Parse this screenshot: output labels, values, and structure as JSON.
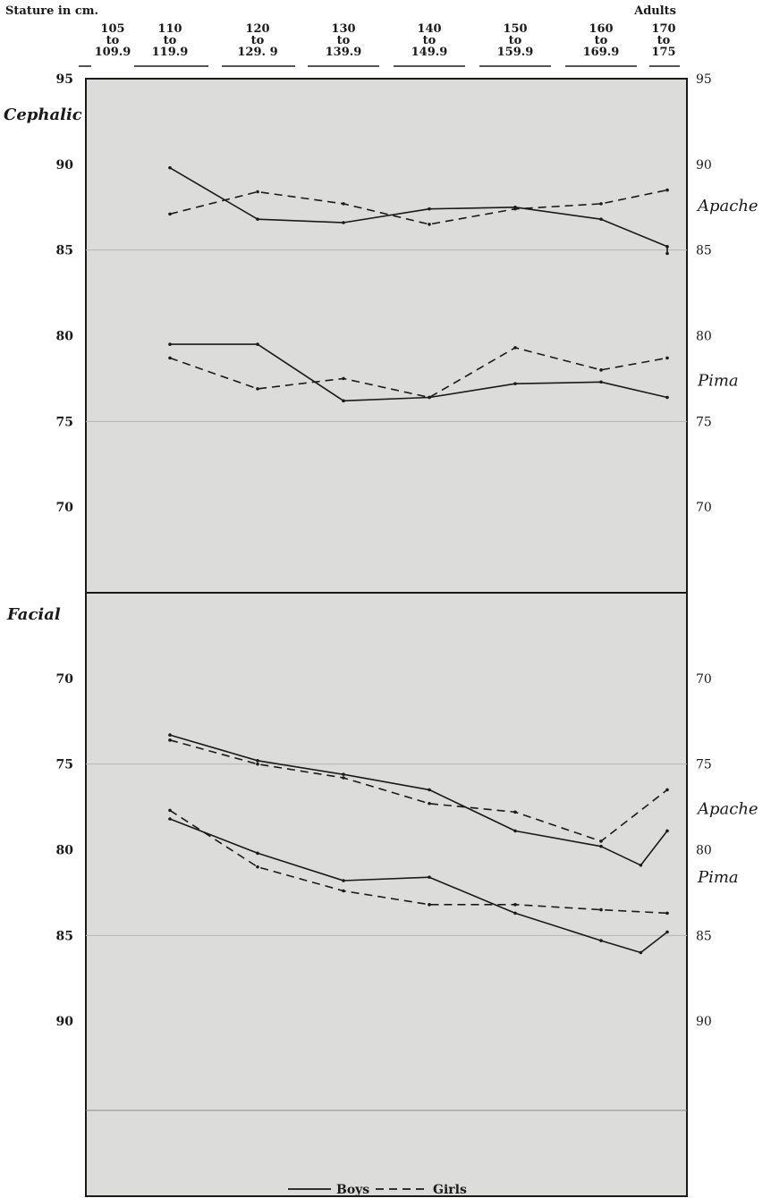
{
  "header": {
    "left_label": "Stature in cm.",
    "right_label": "Adults"
  },
  "footer": {
    "boys_label": "Boys",
    "girls_label": "Girls"
  },
  "chart_data": [
    {
      "type": "line",
      "section_label": "Cephalic",
      "categories": [
        [
          "105",
          "to",
          "109.9"
        ],
        [
          "110",
          "to",
          "119.9"
        ],
        [
          "120",
          "to",
          "129. 9"
        ],
        [
          "130",
          "to",
          "139.9"
        ],
        [
          "140",
          "to",
          "149.9"
        ],
        [
          "150",
          "to",
          "159.9"
        ],
        [
          "160",
          "to",
          "169.9"
        ],
        [
          "170",
          "to",
          "175"
        ]
      ],
      "y_ticks": [
        70,
        75,
        80,
        85,
        90,
        95
      ],
      "ylim": [
        65,
        95
      ],
      "y_inverted": false,
      "style_legend": {
        "solid": "Boys",
        "dashed": "Girls"
      },
      "series": [
        {
          "group": "Apache",
          "style": "solid",
          "x": [
            1,
            2,
            3,
            4,
            5,
            6,
            7,
            7.8
          ],
          "values": [
            89.8,
            86.8,
            86.6,
            87.4,
            87.5,
            86.8,
            85.2,
            84.8
          ]
        },
        {
          "group": "Apache",
          "style": "dashed",
          "x": [
            1,
            2,
            3,
            4,
            5,
            6,
            7
          ],
          "values": [
            87.1,
            88.4,
            87.7,
            86.5,
            87.4,
            87.7,
            88.5
          ]
        },
        {
          "group": "Pima",
          "style": "solid",
          "x": [
            1,
            2,
            3,
            4,
            5,
            6,
            7
          ],
          "values": [
            79.5,
            79.5,
            76.2,
            76.4,
            77.2,
            77.3,
            76.4
          ]
        },
        {
          "group": "Pima",
          "style": "dashed",
          "x": [
            1,
            2,
            3,
            4,
            5,
            6,
            7
          ],
          "values": [
            78.7,
            76.9,
            77.5,
            76.4,
            79.3,
            78.0,
            78.7
          ]
        }
      ],
      "group_labels": [
        {
          "text": "Apache",
          "value": 87.6
        },
        {
          "text": "Pima",
          "value": 77.4
        }
      ]
    },
    {
      "type": "line",
      "section_label": "Facial",
      "y_ticks": [
        70,
        75,
        80,
        85,
        90
      ],
      "ylim": [
        65,
        95
      ],
      "y_inverted": true,
      "style_legend": {
        "solid": "Boys",
        "dashed": "Girls"
      },
      "series": [
        {
          "group": "Apache",
          "style": "solid",
          "x": [
            1,
            2,
            3,
            4,
            5,
            6,
            6.6,
            7
          ],
          "values": [
            73.3,
            74.8,
            75.6,
            76.5,
            78.9,
            79.8,
            80.9,
            78.9
          ]
        },
        {
          "group": "Apache",
          "style": "dashed",
          "x": [
            1,
            2,
            3,
            4,
            5,
            6,
            7
          ],
          "values": [
            73.6,
            75.0,
            75.8,
            77.3,
            77.8,
            79.5,
            76.5
          ]
        },
        {
          "group": "Pima",
          "style": "solid",
          "x": [
            1,
            2,
            3,
            4,
            5,
            6,
            6.6,
            7
          ],
          "values": [
            78.2,
            80.2,
            81.8,
            81.6,
            83.7,
            85.3,
            86.0,
            84.8
          ]
        },
        {
          "group": "Pima",
          "style": "dashed",
          "x": [
            1,
            2,
            3,
            4,
            5,
            6,
            7
          ],
          "values": [
            77.7,
            81.0,
            82.4,
            83.2,
            83.2,
            83.5,
            83.7
          ]
        }
      ],
      "group_labels": [
        {
          "text": "Apache",
          "value": 77.6
        },
        {
          "text": "Pima",
          "value": 81.6
        }
      ]
    }
  ]
}
